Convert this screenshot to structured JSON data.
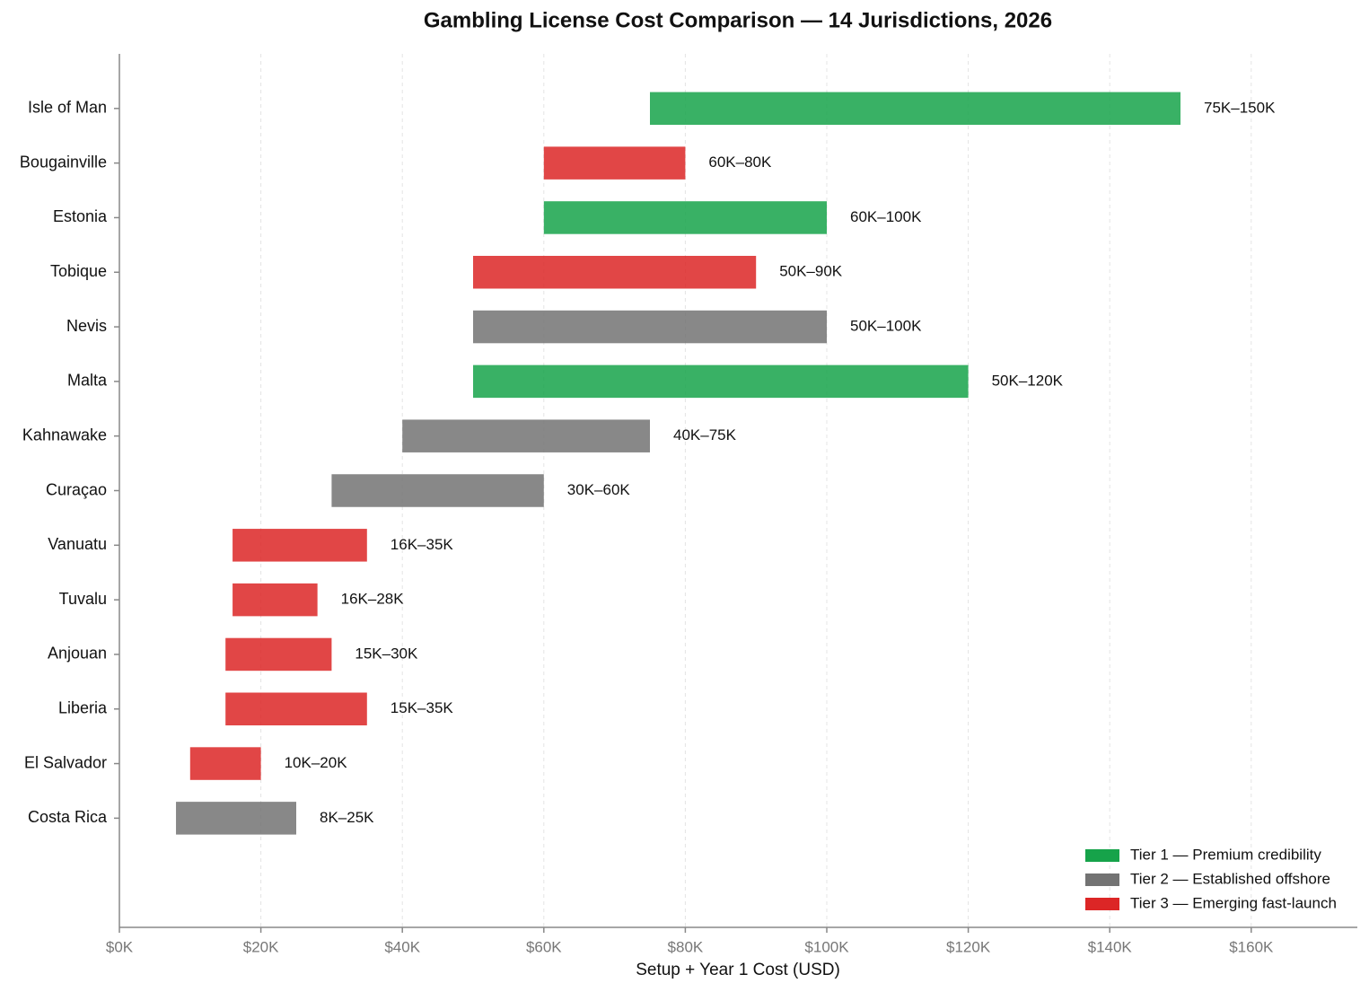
{
  "chart_data": {
    "type": "range-bar",
    "title": "Gambling License Cost Comparison — 14 Jurisdictions, 2026",
    "x_label": "Setup + Year 1 Cost (USD)",
    "categories": [
      "Isle of Man",
      "Bougainville",
      "Estonia",
      "Tobique",
      "Nevis",
      "Malta",
      "Kahnawake",
      "Curaçao",
      "Vanuatu",
      "Tuvalu",
      "Anjouan",
      "Liberia",
      "El Salvador",
      "Costa Rica"
    ],
    "series": [
      {
        "name": "Tier 1 — Premium credibility",
        "color": "#16a34a",
        "start": [
          75000,
          null,
          60000,
          null,
          null,
          50000,
          null,
          null,
          null,
          null,
          null,
          null,
          null,
          null
        ],
        "end": [
          150000,
          null,
          100000,
          null,
          null,
          120000,
          null,
          null,
          null,
          null,
          null,
          null,
          null,
          null
        ],
        "value_labels": [
          "75K–150K",
          null,
          "60K–100K",
          null,
          null,
          "50K–120K",
          null,
          null,
          null,
          null,
          null,
          null,
          null,
          null
        ]
      },
      {
        "name": "Tier 2 — Established offshore",
        "color": "#737373",
        "start": [
          null,
          null,
          null,
          null,
          50000,
          null,
          40000,
          30000,
          null,
          null,
          null,
          null,
          null,
          8000
        ],
        "end": [
          null,
          null,
          null,
          null,
          100000,
          null,
          75000,
          60000,
          null,
          null,
          null,
          null,
          null,
          25000
        ],
        "value_labels": [
          null,
          null,
          null,
          null,
          "50K–100K",
          null,
          "40K–75K",
          "30K–60K",
          null,
          null,
          null,
          null,
          null,
          "8K–25K"
        ]
      },
      {
        "name": "Tier 3 — Emerging fast-launch",
        "color": "#dc2626",
        "start": [
          null,
          60000,
          null,
          50000,
          null,
          null,
          null,
          null,
          16000,
          16000,
          15000,
          15000,
          10000,
          null
        ],
        "end": [
          null,
          80000,
          null,
          90000,
          null,
          null,
          null,
          null,
          35000,
          28000,
          30000,
          35000,
          20000,
          null
        ],
        "value_labels": [
          null,
          "60K–80K",
          null,
          "50K–90K",
          null,
          null,
          null,
          null,
          "16K–35K",
          "16K–28K",
          "15K–30K",
          "15K–35K",
          "10K–20K",
          null
        ]
      }
    ],
    "xlim": [
      0,
      175000
    ],
    "xticks": [
      {
        "value": 0,
        "label": "$0K"
      },
      {
        "value": 20000,
        "label": "$20K"
      },
      {
        "value": 40000,
        "label": "$40K"
      },
      {
        "value": 60000,
        "label": "$60K"
      },
      {
        "value": 80000,
        "label": "$80K"
      },
      {
        "value": 100000,
        "label": "$100K"
      },
      {
        "value": 120000,
        "label": "$120K"
      },
      {
        "value": 140000,
        "label": "$140K"
      },
      {
        "value": 160000,
        "label": "$160K"
      }
    ],
    "grid": true,
    "legend": "lower right"
  }
}
